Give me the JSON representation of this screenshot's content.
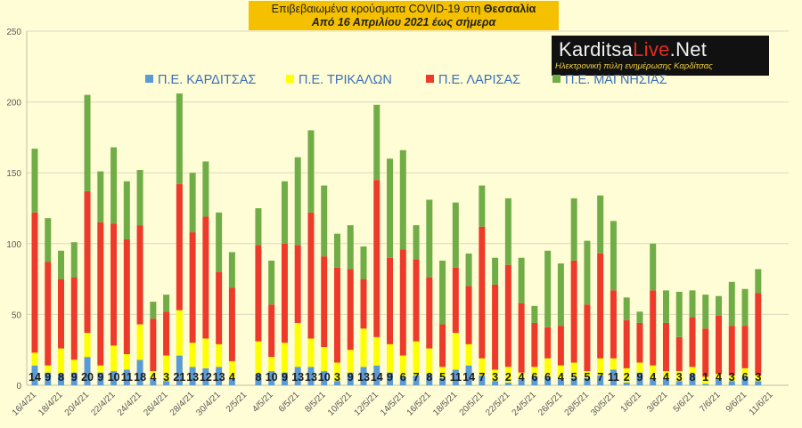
{
  "title": {
    "line1_prefix": "Επιβεβαιωμένα κρούσματα COVID-19 στη",
    "line1_region": "Θεσσαλία",
    "line2": "Από 16 Απριλίου 2021 έως σήμερα"
  },
  "logo": {
    "name_start": "Karditsa",
    "name_highlight": "Live",
    "name_end": ".Net",
    "tagline": "Ηλεκτρονική πύλη ενημέρωσης Καρδίτσας"
  },
  "legend": [
    {
      "label": "Π.Ε. ΚΑΡΔΙΤΣΑΣ",
      "color": "#5b9bd5"
    },
    {
      "label": "Π.Ε. ΤΡΙΚΑΛΩΝ",
      "color": "#ffff00"
    },
    {
      "label": "Π.Ε. ΛΑΡΙΣΑΣ",
      "color": "#ee3a2a"
    },
    {
      "label": "Π.Ε. ΜΑΓΝΗΣΙΑΣ",
      "color": "#70ad47"
    }
  ],
  "chart_data": {
    "type": "bar",
    "stacked": true,
    "ylim": [
      0,
      250
    ],
    "y_ticks": [
      0,
      50,
      100,
      150,
      200,
      250
    ],
    "x_tick_labels": [
      "16/4/21",
      "18/4/21",
      "20/4/21",
      "22/4/21",
      "24/4/21",
      "26/4/21",
      "28/4/21",
      "30/4/21",
      "2/5/21",
      "4/5/21",
      "6/5/21",
      "8/5/21",
      "10/5/21",
      "12/5/21",
      "14/5/21",
      "16/5/21",
      "18/5/21",
      "20/5/21",
      "22/5/21",
      "24/5/21",
      "26/5/21",
      "28/5/21",
      "30/5/21",
      "1/6/21",
      "3/6/21",
      "5/6/21",
      "7/6/21",
      "9/6/21",
      "11/6/21"
    ],
    "gridlines": true,
    "legend_position": "top",
    "series": [
      {
        "name": "Π.Ε. ΚΑΡΔΙΤΣΑΣ",
        "color": "#5b9bd5",
        "values": [
          14,
          9,
          8,
          9,
          20,
          9,
          10,
          11,
          18,
          4,
          3,
          21,
          13,
          12,
          13,
          4,
          0,
          8,
          10,
          9,
          13,
          13,
          10,
          3,
          9,
          13,
          14,
          9,
          6,
          7,
          8,
          5,
          11,
          14,
          7,
          3,
          2,
          4,
          6,
          6,
          4,
          5,
          5,
          7,
          11,
          2,
          9,
          4,
          4,
          3,
          8,
          1,
          4,
          3,
          6,
          3
        ]
      },
      {
        "name": "Π.Ε. ΤΡΙΚΑΛΩΝ",
        "color": "#ffff00",
        "values": [
          9,
          5,
          18,
          9,
          17,
          5,
          18,
          11,
          25,
          6,
          18,
          32,
          17,
          21,
          16,
          13,
          0,
          23,
          10,
          21,
          31,
          20,
          17,
          13,
          16,
          27,
          20,
          20,
          15,
          24,
          18,
          8,
          26,
          15,
          12,
          8,
          11,
          5,
          7,
          13,
          10,
          11,
          5,
          12,
          8,
          10,
          7,
          10,
          6,
          7,
          5,
          5,
          4,
          4,
          6,
          4
        ]
      },
      {
        "name": "Π.Ε. ΛΑΡΙΣΑΣ",
        "color": "#ee3a2a",
        "values": [
          99,
          73,
          49,
          58,
          100,
          101,
          86,
          81,
          70,
          37,
          31,
          89,
          78,
          86,
          51,
          52,
          0,
          68,
          37,
          70,
          55,
          89,
          64,
          67,
          57,
          35,
          111,
          61,
          75,
          58,
          50,
          30,
          46,
          41,
          93,
          60,
          72,
          49,
          31,
          22,
          28,
          72,
          47,
          74,
          48,
          34,
          28,
          53,
          34,
          24,
          35,
          34,
          41,
          35,
          30,
          58
        ]
      },
      {
        "name": "Π.Ε. ΜΑΓΝΗΣΙΑΣ",
        "color": "#70ad47",
        "values": [
          45,
          31,
          20,
          25,
          68,
          36,
          54,
          41,
          39,
          12,
          12,
          64,
          42,
          39,
          42,
          25,
          0,
          26,
          31,
          44,
          62,
          58,
          50,
          24,
          31,
          23,
          53,
          70,
          70,
          24,
          55,
          45,
          46,
          23,
          29,
          19,
          47,
          32,
          12,
          54,
          44,
          44,
          45,
          41,
          49,
          16,
          8,
          33,
          23,
          32,
          19,
          24,
          14,
          31,
          26,
          17
        ]
      }
    ],
    "data_labels": [
      14,
      9,
      8,
      9,
      20,
      9,
      10,
      11,
      18,
      4,
      3,
      21,
      13,
      12,
      13,
      4,
      null,
      8,
      10,
      9,
      13,
      13,
      10,
      3,
      9,
      13,
      14,
      9,
      6,
      7,
      8,
      5,
      11,
      14,
      7,
      3,
      2,
      4,
      6,
      6,
      4,
      5,
      5,
      7,
      11,
      2,
      9,
      4,
      4,
      3,
      8,
      1,
      4,
      3,
      6,
      3
    ]
  }
}
